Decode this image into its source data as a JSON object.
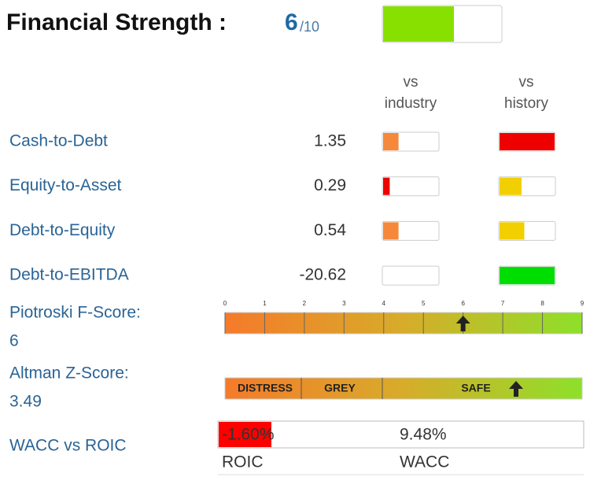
{
  "title": {
    "label": "Financial Strength :",
    "score": 6,
    "out_of": "/10",
    "bar_fill": 60,
    "bar_color": "#88e000"
  },
  "headers": {
    "industry": [
      "vs",
      "industry"
    ],
    "history": [
      "vs",
      "history"
    ]
  },
  "rows": [
    {
      "label": "Cash-to-Debt",
      "value": 1.35,
      "industry": {
        "fill": 28,
        "color": "#f5883a"
      },
      "history": {
        "fill": 100,
        "color": "#ee0000"
      }
    },
    {
      "label": "Equity-to-Asset",
      "value": 0.29,
      "industry": {
        "fill": 12,
        "color": "#ee0000"
      },
      "history": {
        "fill": 40,
        "color": "#f2cf00"
      }
    },
    {
      "label": "Debt-to-Equity",
      "value": 0.54,
      "industry": {
        "fill": 28,
        "color": "#f5883a"
      },
      "history": {
        "fill": 45,
        "color": "#f2cf00"
      }
    },
    {
      "label": "Debt-to-EBITDA",
      "value": -20.62,
      "industry": {
        "fill": 0,
        "color": "#f5883a"
      },
      "history": {
        "fill": 100,
        "color": "#00dd00"
      }
    }
  ],
  "piotroski": {
    "label": "Piotroski F-Score:",
    "score": 6,
    "xlim": [
      0,
      9
    ],
    "ticks": [
      0,
      1,
      2,
      3,
      4,
      5,
      6,
      7,
      8,
      9
    ]
  },
  "altman": {
    "label": "Altman Z-Score:",
    "score": 3.49,
    "zones": [
      "DISTRESS",
      "GREY",
      "SAFE"
    ]
  },
  "wacc_roic": {
    "label": "WACC vs ROIC",
    "roic": "-1.60%",
    "wacc": "9.48%",
    "roic_name": "ROIC",
    "wacc_name": "WACC"
  }
}
